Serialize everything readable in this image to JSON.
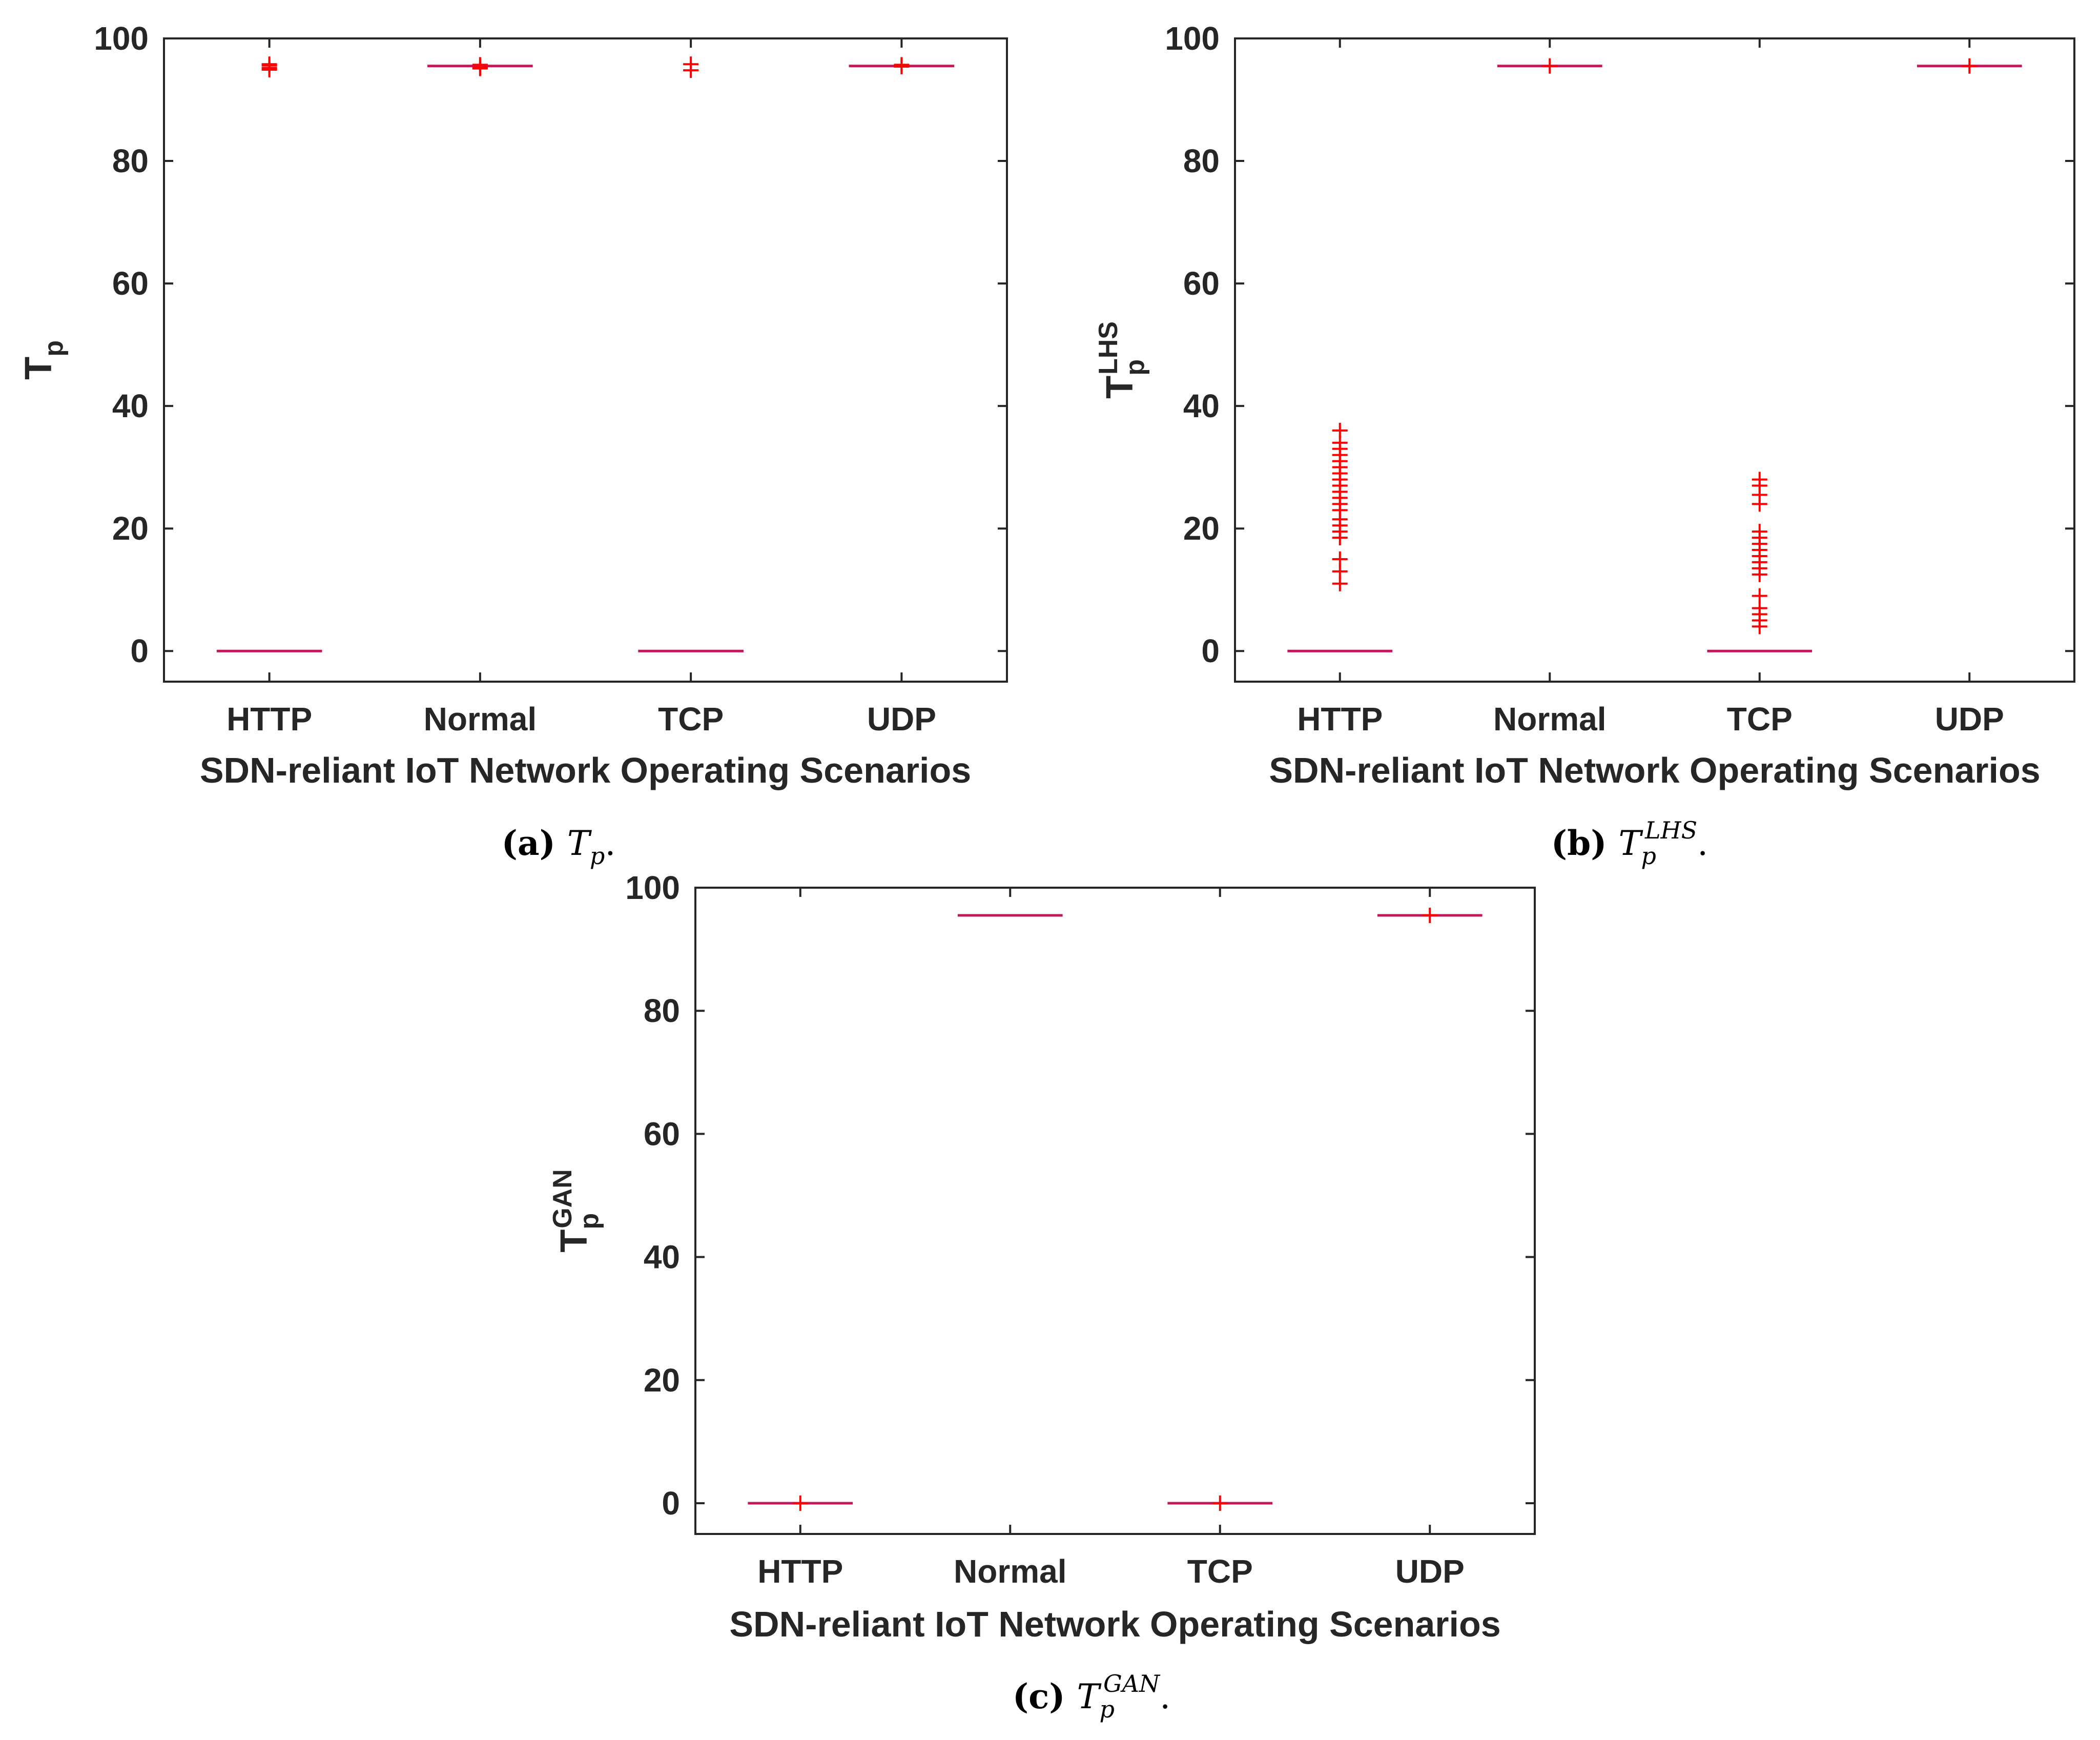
{
  "chart_data": [
    {
      "type": "box",
      "panel": "a",
      "categories": [
        "HTTP",
        "Normal",
        "TCP",
        "UDP"
      ],
      "xlabel": "SDN-reliant IoT Network Operating Scenarios",
      "ylabel": "T",
      "ylabel_sub": "p",
      "ylabel_sup": "",
      "ylim": [
        -5,
        100
      ],
      "yticks": [
        "0",
        "20",
        "40",
        "60",
        "80",
        "100"
      ],
      "medians": [
        0,
        95.5,
        0,
        95.5
      ],
      "outliers": [
        [
          95.2,
          95.6,
          95.8,
          94.9
        ],
        [
          95.3,
          95.7,
          95.1
        ],
        [
          95.8,
          94.8
        ],
        [
          95.4,
          95.7
        ]
      ],
      "caption_tag": "(a)",
      "caption_base": "T",
      "caption_sub": "p",
      "caption_sup": "",
      "caption_end": "."
    },
    {
      "type": "box",
      "panel": "b",
      "categories": [
        "HTTP",
        "Normal",
        "TCP",
        "UDP"
      ],
      "xlabel": "SDN-reliant IoT Network Operating Scenarios",
      "ylabel": "T",
      "ylabel_sub": "p",
      "ylabel_sup": "LHS",
      "ylim": [
        -5,
        100
      ],
      "yticks": [
        "0",
        "20",
        "40",
        "60",
        "80",
        "100"
      ],
      "medians": [
        0,
        95.5,
        0,
        95.5
      ],
      "outliers": [
        [
          11,
          13,
          15,
          18.5,
          19.5,
          20.5,
          21.5,
          23,
          24,
          25,
          26,
          27,
          28,
          29,
          30,
          31,
          32,
          33,
          34,
          36
        ],
        [
          95.5
        ],
        [
          4,
          5,
          6,
          7,
          9,
          12.5,
          13.5,
          14.5,
          15.5,
          16.5,
          17.5,
          18.5,
          19.5,
          24,
          25.5,
          27,
          28
        ],
        [
          95.5
        ]
      ],
      "caption_tag": "(b)",
      "caption_base": "T",
      "caption_sub": "p",
      "caption_sup": "LHS",
      "caption_end": "."
    },
    {
      "type": "box",
      "panel": "c",
      "categories": [
        "HTTP",
        "Normal",
        "TCP",
        "UDP"
      ],
      "xlabel": "SDN-reliant IoT Network Operating Scenarios",
      "ylabel": "T",
      "ylabel_sub": "p",
      "ylabel_sup": "GAN",
      "ylim": [
        -5,
        100
      ],
      "yticks": [
        "0",
        "20",
        "40",
        "60",
        "80",
        "100"
      ],
      "medians": [
        0,
        95.5,
        0,
        95.5
      ],
      "outliers": [
        [
          0
        ],
        [],
        [
          0
        ],
        [
          95.5
        ]
      ],
      "caption_tag": "(c)",
      "caption_base": "T",
      "caption_sub": "p",
      "caption_sup": "GAN",
      "caption_end": "."
    }
  ]
}
